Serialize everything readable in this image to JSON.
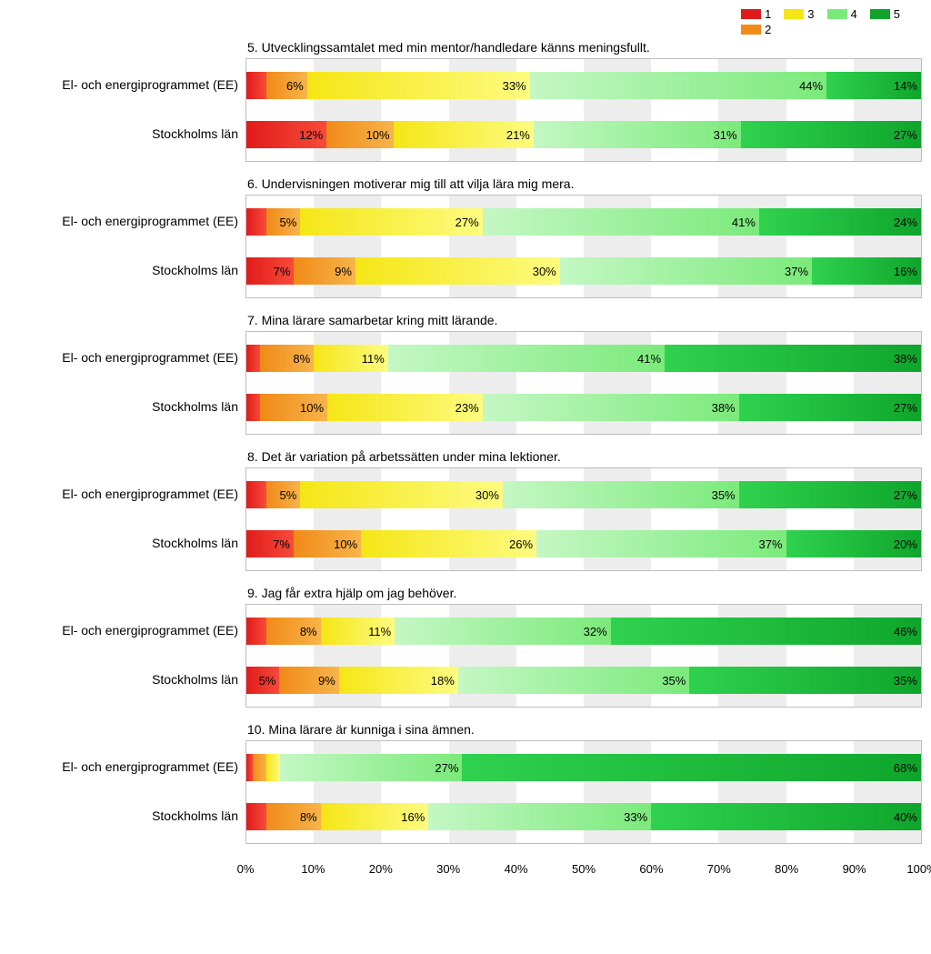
{
  "legend": {
    "items": [
      {
        "label": "1",
        "color": "#e11b1b"
      },
      {
        "label": "2",
        "color": "#f08a18"
      },
      {
        "label": "3",
        "color": "#f5e616"
      },
      {
        "label": "4",
        "color": "#7bea7b"
      },
      {
        "label": "5",
        "color": "#0fa52c"
      }
    ]
  },
  "colors": {
    "seg1_start": "#e11b1b",
    "seg1_end": "#f64b3a",
    "seg2_start": "#f08a18",
    "seg2_end": "#f8b44a",
    "seg3_start": "#f5e616",
    "seg3_end": "#fdfb80",
    "seg4_start": "#7bea7b",
    "seg4_end": "#c4f7c4",
    "seg5_start": "#0fa52c",
    "seg5_end": "#2fd24e",
    "grid_band": "#ededed",
    "grid_bg": "#ffffff",
    "border": "#bdbdbd"
  },
  "axis": {
    "ticks": [
      "0%",
      "10%",
      "20%",
      "30%",
      "40%",
      "50%",
      "60%",
      "70%",
      "80%",
      "90%",
      "100%"
    ],
    "step": 10,
    "max": 100
  },
  "label_threshold": 5,
  "row_labels": [
    "El- och energiprogrammet (EE)",
    "Stockholms län"
  ],
  "charts": [
    {
      "title": "5. Utvecklingssamtalet med min mentor/handledare känns meningsfullt.",
      "rows": [
        {
          "values": [
            3,
            6,
            33,
            44,
            14
          ]
        },
        {
          "values": [
            12,
            10,
            21,
            31,
            27
          ]
        }
      ]
    },
    {
      "title": "6. Undervisningen motiverar mig till att vilja lära mig mera.",
      "rows": [
        {
          "values": [
            3,
            5,
            27,
            41,
            24
          ]
        },
        {
          "values": [
            7,
            9,
            30,
            37,
            16
          ]
        }
      ]
    },
    {
      "title": "7. Mina lärare samarbetar kring mitt lärande.",
      "rows": [
        {
          "values": [
            2,
            8,
            11,
            41,
            38
          ]
        },
        {
          "values": [
            2,
            10,
            23,
            38,
            27
          ]
        }
      ]
    },
    {
      "title": "8. Det är variation på arbetssätten under mina lektioner.",
      "rows": [
        {
          "values": [
            3,
            5,
            30,
            35,
            27
          ]
        },
        {
          "values": [
            7,
            10,
            26,
            37,
            20
          ]
        }
      ]
    },
    {
      "title": "9. Jag får extra hjälp om jag behöver.",
      "rows": [
        {
          "values": [
            3,
            8,
            11,
            32,
            46
          ]
        },
        {
          "values": [
            5,
            9,
            18,
            35,
            35
          ]
        }
      ]
    },
    {
      "title": "10. Mina lärare är kunniga i sina ämnen.",
      "rows": [
        {
          "values": [
            1,
            2,
            2,
            27,
            68
          ]
        },
        {
          "values": [
            3,
            8,
            16,
            33,
            40
          ]
        }
      ]
    }
  ]
}
